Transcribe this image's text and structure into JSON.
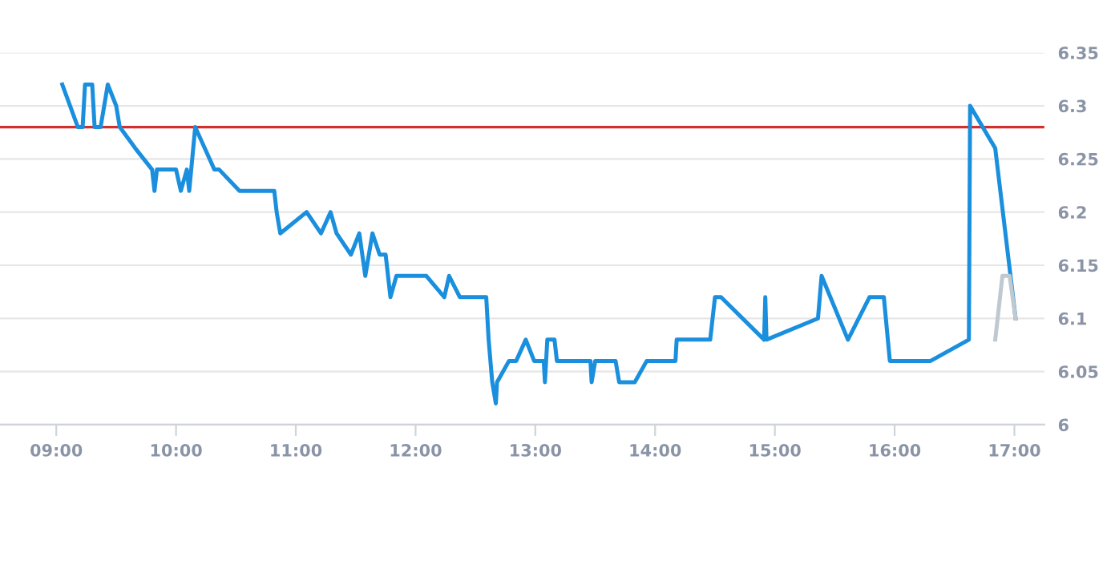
{
  "chart_data": {
    "type": "line",
    "xlim": [
      8.53,
      17.25
    ],
    "xticks": [
      {
        "value": 9,
        "label": "09:00"
      },
      {
        "value": 10,
        "label": "10:00"
      },
      {
        "value": 11,
        "label": "11:00"
      },
      {
        "value": 12,
        "label": "12:00"
      },
      {
        "value": 13,
        "label": "13:00"
      },
      {
        "value": 14,
        "label": "14:00"
      },
      {
        "value": 15,
        "label": "15:00"
      },
      {
        "value": 16,
        "label": "16:00"
      },
      {
        "value": 17,
        "label": "17:00"
      }
    ],
    "ylim": [
      6,
      6.35
    ],
    "yticks": [
      6,
      6.05,
      6.1,
      6.15,
      6.2,
      6.25,
      6.3,
      6.35
    ],
    "grid": "y",
    "line_style": "solid",
    "marker": "none",
    "ref_lines": [
      {
        "axis": "y",
        "value": 6.28,
        "color": "#d0312d"
      }
    ],
    "series": [
      {
        "color": "#1a8fdd",
        "x": [
          9.05,
          9.18,
          9.22,
          9.24,
          9.3,
          9.32,
          9.37,
          9.43,
          9.5,
          9.53,
          9.66,
          9.8,
          9.82,
          9.84,
          10.0,
          10.04,
          10.09,
          10.11,
          10.16,
          10.32,
          10.36,
          10.53,
          10.82,
          10.84,
          10.87,
          11.09,
          11.21,
          11.29,
          11.34,
          11.46,
          11.53,
          11.58,
          11.64,
          11.7,
          11.75,
          11.79,
          11.84,
          12.09,
          12.24,
          12.28,
          12.37,
          12.59,
          12.61,
          12.64,
          12.67,
          12.68,
          12.78,
          12.84,
          12.92,
          12.99,
          13.07,
          13.08,
          13.1,
          13.16,
          13.18,
          13.46,
          13.47,
          13.5,
          13.67,
          13.7,
          13.83,
          13.93,
          14.17,
          14.18,
          14.46,
          14.5,
          14.55,
          14.91,
          14.92,
          14.93,
          15.36,
          15.39,
          15.61,
          15.79,
          15.91,
          15.96,
          16.3,
          16.62,
          16.63,
          16.84,
          17.01
        ],
        "values": [
          6.32,
          6.28,
          6.28,
          6.32,
          6.32,
          6.28,
          6.28,
          6.32,
          6.3,
          6.28,
          6.26,
          6.24,
          6.22,
          6.24,
          6.24,
          6.22,
          6.24,
          6.22,
          6.28,
          6.24,
          6.24,
          6.22,
          6.22,
          6.2,
          6.18,
          6.2,
          6.18,
          6.2,
          6.18,
          6.16,
          6.18,
          6.14,
          6.18,
          6.16,
          6.16,
          6.12,
          6.14,
          6.14,
          6.12,
          6.14,
          6.12,
          6.12,
          6.08,
          6.04,
          6.02,
          6.04,
          6.06,
          6.06,
          6.08,
          6.06,
          6.06,
          6.04,
          6.08,
          6.08,
          6.06,
          6.06,
          6.04,
          6.06,
          6.06,
          6.04,
          6.04,
          6.06,
          6.06,
          6.08,
          6.08,
          6.12,
          6.12,
          6.08,
          6.12,
          6.08,
          6.1,
          6.14,
          6.08,
          6.12,
          6.12,
          6.06,
          6.06,
          6.08,
          6.3,
          6.26,
          6.1
        ]
      },
      {
        "color": "#c0c8d0",
        "x": [
          16.84,
          16.9,
          16.96,
          17.01
        ],
        "values": [
          6.08,
          6.14,
          6.14,
          6.1
        ]
      }
    ]
  }
}
